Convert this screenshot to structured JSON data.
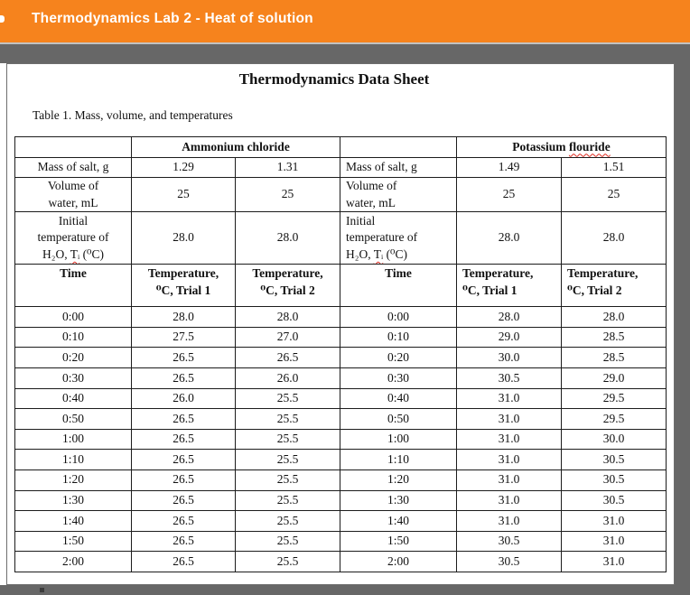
{
  "app": {
    "title": "Thermodynamics Lab 2 - Heat of solution"
  },
  "theme": {
    "accent_orange": "#f6831d",
    "chrome_gray": "#676767",
    "divider_gray": "#c2c2c2",
    "table_border": "#1c1c1c",
    "spellcheck_red": "#e02b20",
    "page_white": "#ffffff"
  },
  "doc": {
    "title": "Thermodynamics Data Sheet",
    "caption": "Table 1. Mass, volume, and temperatures"
  },
  "table": {
    "left": {
      "name": [
        {
          "t": "Ammonium chloride"
        }
      ],
      "mass_label": [
        {
          "t": "Mass of salt, g"
        }
      ],
      "mass": [
        "1.29",
        "1.31"
      ],
      "volume_label": [
        {
          "t": "Volume of",
          "br": true
        },
        {
          "t": "water, mL"
        }
      ],
      "volume": [
        "25",
        "25"
      ],
      "initial_label": [
        {
          "t": "Initial",
          "br": true
        },
        {
          "t": "temperature of",
          "br": true
        },
        {
          "t": "H₂O, "
        },
        {
          "t": "Tᵢ",
          "wavy": true
        },
        {
          "t": " (⁰C)"
        }
      ],
      "initial": [
        "28.0",
        "28.0"
      ],
      "time_header": [
        {
          "t": "Time"
        }
      ],
      "trial1_header": [
        {
          "t": "Temperature,",
          "br": true
        },
        {
          "t": "⁰C, Trial 1"
        }
      ],
      "trial2_header": [
        {
          "t": "Temperature,",
          "br": true
        },
        {
          "t": "⁰C, Trial 2"
        }
      ]
    },
    "right": {
      "name": [
        {
          "t": "Potassium "
        },
        {
          "t": "flouride",
          "wavy": true
        }
      ],
      "mass_label": [
        {
          "t": "Mass of salt, g"
        }
      ],
      "mass": [
        "1.49",
        "1.51"
      ],
      "volume_label": [
        {
          "t": "Volume of",
          "br": true
        },
        {
          "t": "water, mL"
        }
      ],
      "volume": [
        "25",
        "25"
      ],
      "initial_label": [
        {
          "t": "Initial",
          "br": true
        },
        {
          "t": "temperature of",
          "br": true
        },
        {
          "t": "H₂O, "
        },
        {
          "t": "Tᵢ",
          "wavy": true
        },
        {
          "t": " (⁰C)"
        }
      ],
      "initial": [
        "28.0",
        "28.0"
      ],
      "time_header": [
        {
          "t": "Time"
        }
      ],
      "trial1_header": [
        {
          "t": "Temperature,",
          "br": true
        },
        {
          "t": "⁰C, Trial 1"
        }
      ],
      "trial2_header": [
        {
          "t": "Temperature,",
          "br": true
        },
        {
          "t": "⁰C, Trial 2"
        }
      ]
    },
    "rows": [
      [
        "0:00",
        "28.0",
        "28.0",
        "0:00",
        "28.0",
        "28.0"
      ],
      [
        "0:10",
        "27.5",
        "27.0",
        "0:10",
        "29.0",
        "28.5"
      ],
      [
        "0:20",
        "26.5",
        "26.5",
        "0:20",
        "30.0",
        "28.5"
      ],
      [
        "0:30",
        "26.5",
        "26.0",
        "0:30",
        "30.5",
        "29.0"
      ],
      [
        "0:40",
        "26.0",
        "25.5",
        "0:40",
        "31.0",
        "29.5"
      ],
      [
        "0:50",
        "26.5",
        "25.5",
        "0:50",
        "31.0",
        "29.5"
      ],
      [
        "1:00",
        "26.5",
        "25.5",
        "1:00",
        "31.0",
        "30.0"
      ],
      [
        "1:10",
        "26.5",
        "25.5",
        "1:10",
        "31.0",
        "30.5"
      ],
      [
        "1:20",
        "26.5",
        "25.5",
        "1:20",
        "31.0",
        "30.5"
      ],
      [
        "1:30",
        "26.5",
        "25.5",
        "1:30",
        "31.0",
        "30.5"
      ],
      [
        "1:40",
        "26.5",
        "25.5",
        "1:40",
        "31.0",
        "31.0"
      ],
      [
        "1:50",
        "26.5",
        "25.5",
        "1:50",
        "30.5",
        "31.0"
      ],
      [
        "2:00",
        "26.5",
        "25.5",
        "2:00",
        "30.5",
        "31.0"
      ]
    ]
  }
}
